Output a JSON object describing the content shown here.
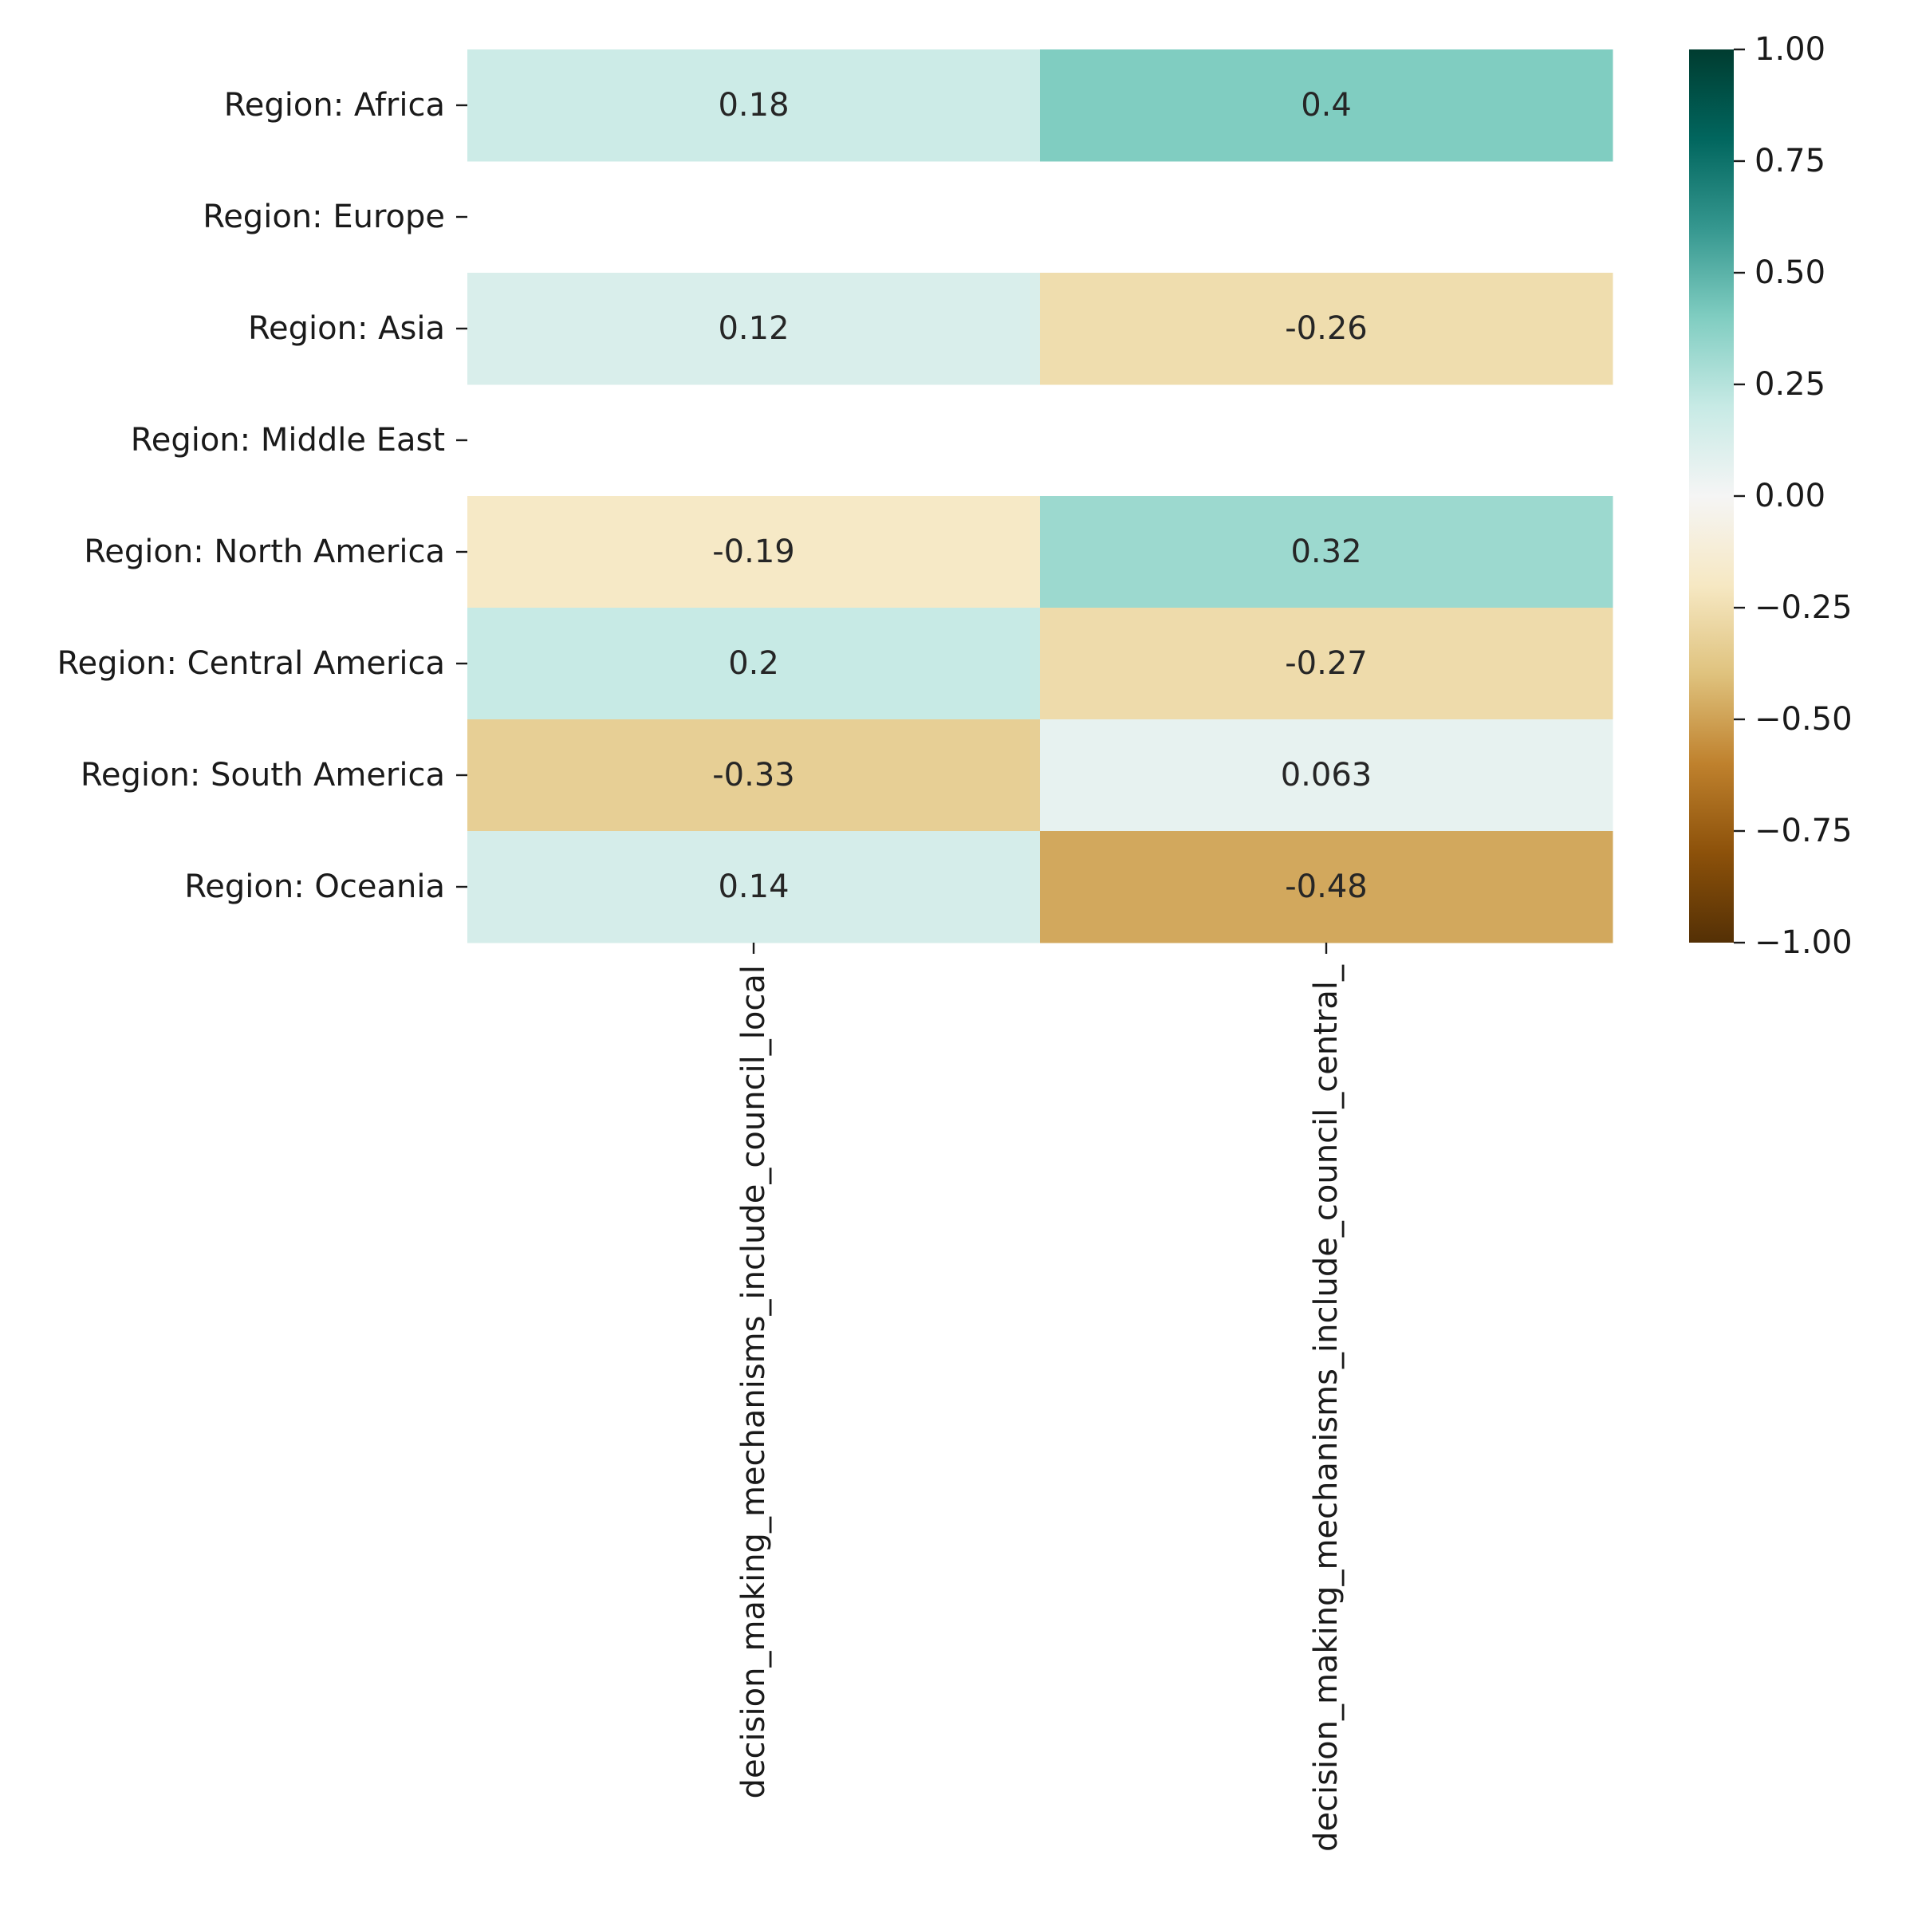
{
  "chart_data": {
    "type": "heatmap",
    "title": "",
    "xlabel": "",
    "ylabel": "",
    "rows": [
      "Region: Africa",
      "Region: Europe",
      "Region: Asia",
      "Region: Middle East",
      "Region: North America",
      "Region: Central America",
      "Region: South America",
      "Region: Oceania"
    ],
    "columns": [
      "decision_making_mechanisms_include_council_local",
      "decision_making_mechanisms_include_council_central_"
    ],
    "values": [
      [
        0.18,
        0.4
      ],
      [
        null,
        null
      ],
      [
        0.12,
        -0.26
      ],
      [
        null,
        null
      ],
      [
        -0.19,
        0.32
      ],
      [
        0.2,
        -0.27
      ],
      [
        -0.33,
        0.063
      ],
      [
        0.14,
        -0.48
      ]
    ],
    "annotations": [
      [
        "0.18",
        "0.4"
      ],
      [
        null,
        null
      ],
      [
        "0.12",
        "-0.26"
      ],
      [
        null,
        null
      ],
      [
        "-0.19",
        "0.32"
      ],
      [
        "0.2",
        "-0.27"
      ],
      [
        "-0.33",
        "0.063"
      ],
      [
        "0.14",
        "-0.48"
      ]
    ],
    "colormap": "BrBG",
    "colorbar": {
      "vmin": -1.0,
      "vmax": 1.0,
      "ticks": [
        1.0,
        0.75,
        0.5,
        0.25,
        0.0,
        -0.25,
        -0.5,
        -0.75,
        -1.0
      ],
      "tick_labels": [
        "1.00",
        "0.75",
        "0.50",
        "0.25",
        "0.00",
        "−0.25",
        "−0.50",
        "−0.75",
        "−1.00"
      ]
    },
    "colors": {
      "text": "#262626",
      "tick": "#1a1a1a",
      "background": "#ffffff"
    }
  }
}
